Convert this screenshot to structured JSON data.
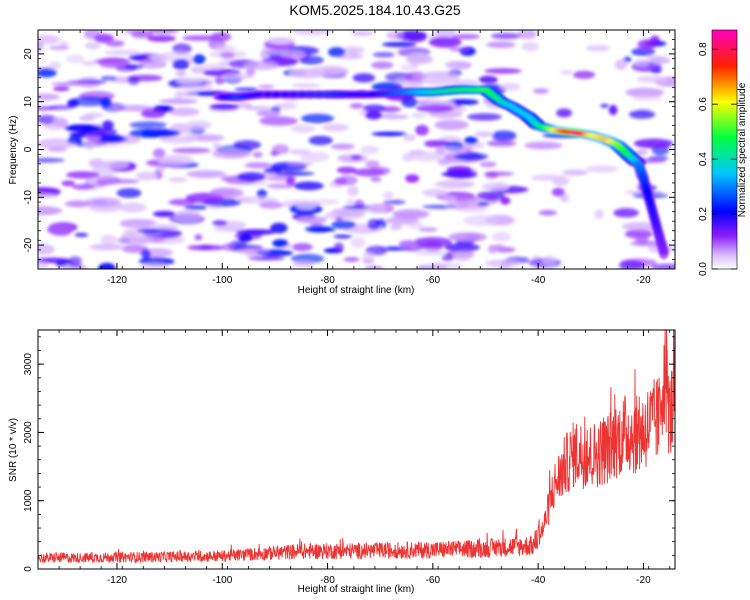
{
  "title": "KOM5.2025.184.10.43.G25",
  "colors": {
    "snr_line": "#ee3333",
    "axis": "#000000",
    "background": "#ffffff"
  },
  "chart_data": [
    {
      "type": "heatmap",
      "xlabel": "Height of straight line (km)",
      "ylabel": "Frequency (Hz)",
      "xlim": [
        -135,
        -14
      ],
      "ylim": [
        -25,
        25
      ],
      "xticks": [
        -120,
        -100,
        -80,
        -60,
        -40,
        -20
      ],
      "yticks": [
        -20,
        -10,
        0,
        10,
        20
      ],
      "colorbar": {
        "label": "Normalized spectral amplitude",
        "range": [
          0,
          0.87
        ],
        "ticks": [
          "0.0",
          "0.2",
          "0.4",
          "0.6",
          "0.8"
        ],
        "colormap": [
          "#ffffff",
          "#c8a0ff",
          "#7a00ff",
          "#0000ff",
          "#00e0ff",
          "#00ff00",
          "#ffff00",
          "#ff0000",
          "#ff00ff"
        ]
      },
      "ridge": {
        "x": [
          -100,
          -97,
          -93,
          -80,
          -72,
          -65,
          -60,
          -55,
          -50,
          -47,
          -45,
          -42,
          -40,
          -37,
          -33,
          -30,
          -27,
          -25,
          -23,
          -21,
          -20,
          -19,
          -18,
          -17,
          -16
        ],
        "y": [
          11,
          11,
          11.5,
          11.5,
          11.5,
          12,
          12,
          12.5,
          12.5,
          10,
          9,
          7,
          5,
          4,
          3.5,
          3,
          2,
          1,
          -1,
          -3,
          -6,
          -10,
          -14,
          -18,
          -22
        ],
        "amplitude": [
          0.2,
          0.25,
          0.2,
          0.25,
          0.2,
          0.3,
          0.4,
          0.45,
          0.5,
          0.4,
          0.35,
          0.35,
          0.4,
          0.6,
          0.85,
          0.6,
          0.65,
          0.55,
          0.45,
          0.3,
          0.25,
          0.2,
          0.18,
          0.15,
          0.12
        ]
      }
    },
    {
      "type": "line",
      "xlabel": "Height of straight line (km)",
      "ylabel": "SNR (10 * v/v)",
      "xlim": [
        -135,
        -14
      ],
      "ylim": [
        0,
        3500
      ],
      "xticks": [
        -120,
        -100,
        -80,
        -60,
        -40,
        -20
      ],
      "yticks": [
        0,
        1000,
        2000,
        3000
      ],
      "series": [
        {
          "x": [
            -135,
            -120,
            -100,
            -85,
            -70,
            -60,
            -50,
            -45,
            -41,
            -39,
            -38,
            -37,
            -35,
            -33,
            -30,
            -27,
            -25,
            -23,
            -21,
            -19,
            -17,
            -16,
            -15,
            -14
          ],
          "y": [
            160,
            170,
            190,
            260,
            270,
            280,
            300,
            330,
            340,
            600,
            900,
            1200,
            1500,
            1700,
            1650,
            1750,
            1900,
            2000,
            1950,
            2100,
            2200,
            3000,
            2200,
            2600
          ]
        }
      ]
    }
  ]
}
